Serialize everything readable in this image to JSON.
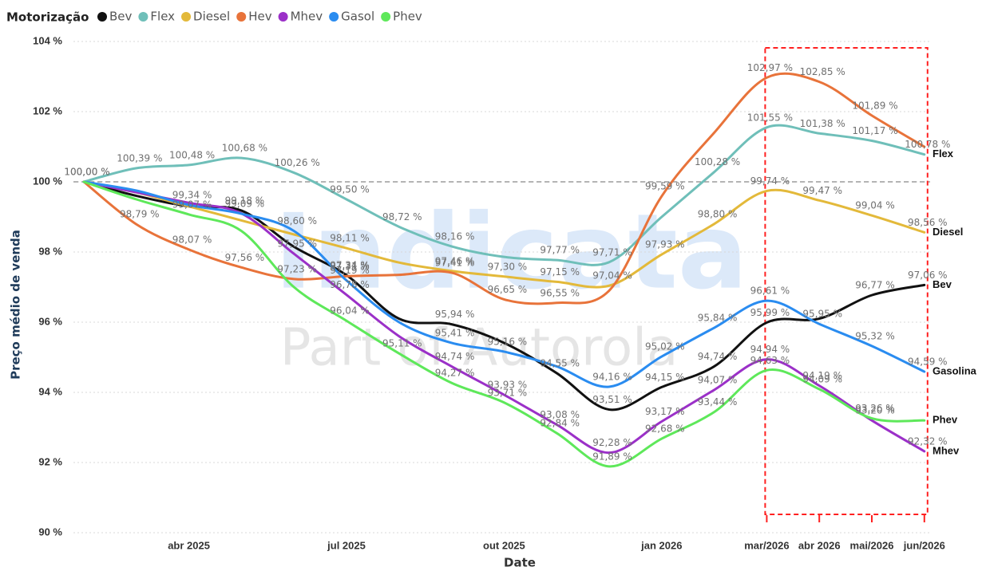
{
  "chart_data": {
    "type": "line",
    "legend_title": "Motorização",
    "ylabel": "Preço médio de venda",
    "xlabel": "Date",
    "watermark": [
      "Indicata",
      "Part of Autorola"
    ],
    "x": [
      "2025-02",
      "2025-03",
      "2025-04",
      "2025-05",
      "2025-06",
      "2025-07",
      "2025-08",
      "2025-09",
      "2025-10",
      "2025-11",
      "2025-12",
      "2026-01",
      "2026-02",
      "2026-03",
      "2026-04",
      "2026-05",
      "2026-06"
    ],
    "xticks": [
      {
        "value": "2025-04",
        "label": "abr 2025"
      },
      {
        "value": "2025-07",
        "label": "jul 2025"
      },
      {
        "value": "2025-10",
        "label": "out 2025"
      },
      {
        "value": "2026-01",
        "label": "jan 2026"
      },
      {
        "value": "2026-03",
        "label": "mar/2026"
      },
      {
        "value": "2026-04",
        "label": "abr 2026"
      },
      {
        "value": "2026-05",
        "label": "mai/2026"
      },
      {
        "value": "2026-06",
        "label": "jun/2026"
      }
    ],
    "ylim": [
      90,
      104
    ],
    "yticks": [
      {
        "value": 90,
        "label": "90 %"
      },
      {
        "value": 92,
        "label": "92 %"
      },
      {
        "value": 94,
        "label": "94 %"
      },
      {
        "value": 96,
        "label": "96 %"
      },
      {
        "value": 98,
        "label": "98 %"
      },
      {
        "value": 100,
        "label": "100 %"
      },
      {
        "value": 102,
        "label": "102 %"
      },
      {
        "value": 104,
        "label": "104 %"
      }
    ],
    "grid": true,
    "reference_line": 100,
    "highlight": {
      "from": "2026-03",
      "to": "2026-06",
      "color": "#ff2020"
    },
    "series": [
      {
        "name": "Bev",
        "color": "#111111",
        "end_label": true,
        "values": [
          100,
          99.6,
          99.3,
          99.18,
          98.15,
          97.34,
          96.1,
          95.94,
          95.41,
          94.55,
          93.51,
          94.15,
          94.74,
          95.99,
          96.1,
          96.77,
          97.06
        ],
        "value_labels": [
          "100,00 %",
          null,
          null,
          "99,18 %",
          null,
          "97,34 %",
          null,
          "95,94 %",
          null,
          "94,55 %",
          "93,51 %",
          "94,15 %",
          "94,74 %",
          "95,99 %",
          null,
          "96,77 %",
          "97,06 %"
        ]
      },
      {
        "name": "Flex",
        "color": "#6fbfb9",
        "end_label": true,
        "values": [
          100,
          100.39,
          100.48,
          100.68,
          100.26,
          99.5,
          98.72,
          98.16,
          97.86,
          97.77,
          97.71,
          99.0,
          100.28,
          101.55,
          101.38,
          101.17,
          100.78
        ],
        "value_labels": [
          "100,00 %",
          "100,39 %",
          "100,48 %",
          "100,68 %",
          "100,26 %",
          "99,50 %",
          "98,72 %",
          "98,16 %",
          null,
          "97,77 %",
          "97,71 %",
          null,
          "100,28 %",
          "101,55 %",
          "101,38 %",
          "101,17 %",
          "100,78 %"
        ]
      },
      {
        "name": "Diesel",
        "color": "#e3b93a",
        "end_label": true,
        "values": [
          100,
          99.7,
          99.3,
          98.9,
          98.5,
          98.11,
          97.7,
          97.46,
          97.3,
          97.15,
          97.04,
          97.93,
          98.8,
          99.74,
          99.47,
          99.04,
          98.56
        ],
        "value_labels": [
          null,
          null,
          null,
          null,
          null,
          "98,11 %",
          null,
          "97,46 %",
          "97,30 %",
          "97,15 %",
          "97,04 %",
          "97,93 %",
          "98,80 %",
          "99,74 %",
          "99,47 %",
          "99,04 %",
          "98,56 %"
        ]
      },
      {
        "name": "Hev",
        "color": "#e8733a",
        "end_label": false,
        "values": [
          100,
          98.79,
          98.07,
          97.56,
          97.23,
          97.31,
          97.35,
          97.41,
          96.65,
          96.55,
          96.9,
          99.59,
          101.4,
          102.97,
          102.85,
          101.89,
          101.0
        ],
        "value_labels": [
          null,
          "98,79 %",
          "98,07 %",
          "97,56 %",
          "97,23 %",
          "97,31 %",
          null,
          "97,41 %",
          "96,65 %",
          "96,55 %",
          null,
          "99,59 %",
          null,
          "102,97 %",
          "102,85 %",
          "101,89 %",
          null
        ]
      },
      {
        "name": "Mhev",
        "color": "#9b30c8",
        "end_label": true,
        "values": [
          100,
          99.7,
          99.4,
          99.1,
          97.95,
          96.78,
          95.6,
          94.74,
          93.93,
          93.08,
          92.28,
          93.17,
          94.07,
          94.94,
          94.19,
          93.2,
          92.32
        ],
        "value_labels": [
          null,
          null,
          null,
          null,
          "97,95 %",
          "96,78 %",
          null,
          "94,74 %",
          "93,93 %",
          "93,08 %",
          "92,28 %",
          "93,17 %",
          "94,07 %",
          "94,94 %",
          "94,19 %",
          "93,20 %",
          "92,32 %"
        ]
      },
      {
        "name": "Gasolina",
        "legend_label": "Gasol",
        "color": "#2a8cf0",
        "end_label": true,
        "values": [
          100,
          99.75,
          99.34,
          99.09,
          98.6,
          97.19,
          96.0,
          95.41,
          95.16,
          94.74,
          94.16,
          95.02,
          95.84,
          96.61,
          95.95,
          95.32,
          94.59
        ],
        "value_labels": [
          null,
          null,
          "99,34 %",
          "99,09 %",
          "98,60 %",
          "97,19 %",
          null,
          "95,41 %",
          "95,16 %",
          null,
          "94,16 %",
          "95,02 %",
          "95,84 %",
          "96,61 %",
          "95,95 %",
          "95,32 %",
          "94,59 %"
        ]
      },
      {
        "name": "Phev",
        "color": "#5ee85a",
        "end_label": true,
        "values": [
          100,
          99.5,
          99.07,
          98.6,
          97.0,
          96.04,
          95.11,
          94.27,
          93.71,
          92.84,
          91.89,
          92.68,
          93.44,
          94.63,
          94.09,
          93.26,
          93.2
        ],
        "value_labels": [
          null,
          null,
          "99,07 %",
          null,
          null,
          "96,04 %",
          "95,11 %",
          "94,27 %",
          "93,71 %",
          "92,84 %",
          "91,89 %",
          "92,68 %",
          "93,44 %",
          "94,63 %",
          "94,09 %",
          "93,26 %",
          null
        ]
      }
    ]
  }
}
